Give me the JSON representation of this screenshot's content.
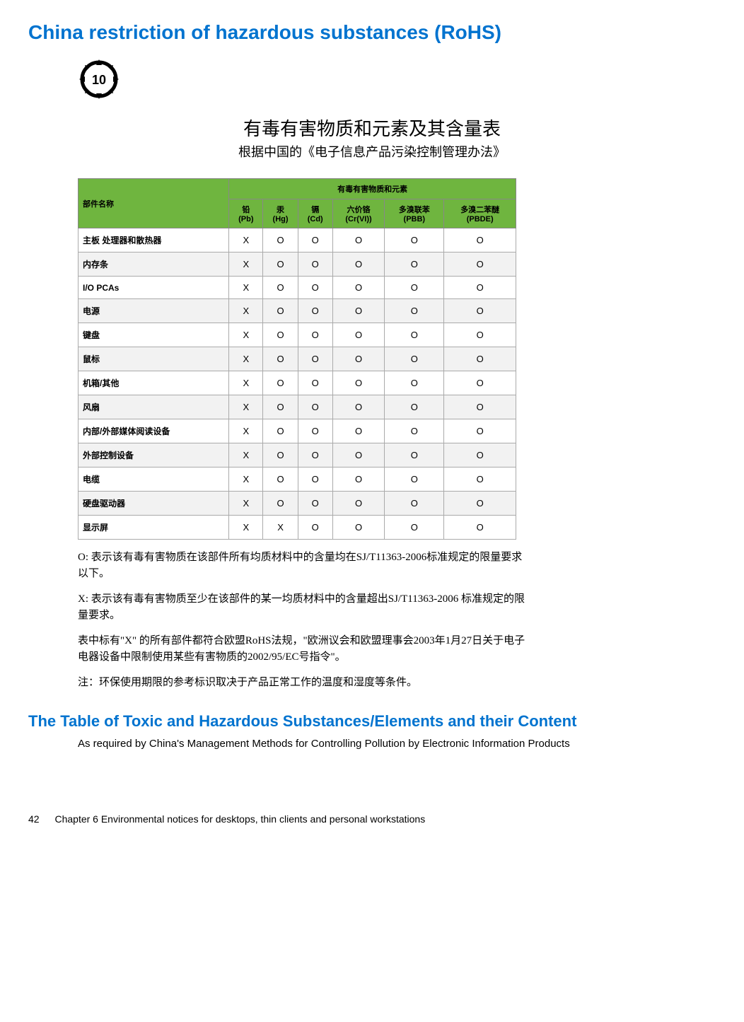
{
  "heading": "China restriction of hazardous substances (RoHS)",
  "epup_value": "10",
  "cn_title": "有毒有害物质和元素及其含量表",
  "cn_subtitle": "根据中国的《电子信息产品污染控制管理办法》",
  "table": {
    "header_group": "有毒有害物质和元素",
    "col_part": "部件名称",
    "columns": [
      {
        "l1": "铅",
        "l2": "(Pb)"
      },
      {
        "l1": "汞",
        "l2": "(Hg)"
      },
      {
        "l1": "镉",
        "l2": "(Cd)"
      },
      {
        "l1": "六价铬",
        "l2": "(Cr(VI))"
      },
      {
        "l1": "多溴联苯",
        "l2": "(PBB)"
      },
      {
        "l1": "多溴二苯醚",
        "l2": "(PBDE)"
      }
    ],
    "rows": [
      {
        "name": "主板 处理器和散热器",
        "vals": [
          "X",
          "O",
          "O",
          "O",
          "O",
          "O"
        ]
      },
      {
        "name": "内存条",
        "vals": [
          "X",
          "O",
          "O",
          "O",
          "O",
          "O"
        ]
      },
      {
        "name": "I/O PCAs",
        "vals": [
          "X",
          "O",
          "O",
          "O",
          "O",
          "O"
        ]
      },
      {
        "name": "电源",
        "vals": [
          "X",
          "O",
          "O",
          "O",
          "O",
          "O"
        ]
      },
      {
        "name": "键盘",
        "vals": [
          "X",
          "O",
          "O",
          "O",
          "O",
          "O"
        ]
      },
      {
        "name": "鼠标",
        "vals": [
          "X",
          "O",
          "O",
          "O",
          "O",
          "O"
        ]
      },
      {
        "name": "机箱/其他",
        "vals": [
          "X",
          "O",
          "O",
          "O",
          "O",
          "O"
        ]
      },
      {
        "name": "风扇",
        "vals": [
          "X",
          "O",
          "O",
          "O",
          "O",
          "O"
        ]
      },
      {
        "name": "内部/外部媒体阅读设备",
        "vals": [
          "X",
          "O",
          "O",
          "O",
          "O",
          "O"
        ]
      },
      {
        "name": "外部控制设备",
        "vals": [
          "X",
          "O",
          "O",
          "O",
          "O",
          "O"
        ]
      },
      {
        "name": "电缆",
        "vals": [
          "X",
          "O",
          "O",
          "O",
          "O",
          "O"
        ]
      },
      {
        "name": "硬盘驱动器",
        "vals": [
          "X",
          "O",
          "O",
          "O",
          "O",
          "O"
        ]
      },
      {
        "name": "显示屏",
        "vals": [
          "X",
          "X",
          "O",
          "O",
          "O",
          "O"
        ]
      }
    ]
  },
  "notes": {
    "p1": "O: 表示该有毒有害物质在该部件所有均质材料中的含量均在SJ/T11363-2006标准规定的限量要求以下。",
    "p2": "X: 表示该有毒有害物质至少在该部件的某一均质材料中的含量超出SJ/T11363-2006  标准规定的限量要求。",
    "p3": "表中标有\"X\"  的所有部件都符合欧盟RoHS法规，\"欧洲议会和欧盟理事会2003年1月27日关于电子电器设备中限制使用某些有害物质的2002/95/EC号指令\"。",
    "p4": "注：环保使用期限的参考标识取决于产品正常工作的温度和湿度等条件。"
  },
  "sub_heading": "The Table of Toxic and Hazardous Substances/Elements and their Content",
  "eng_note": "As required by China's Management Methods for Controlling Pollution by Electronic Information Products",
  "footer": {
    "page": "42",
    "chapter": "Chapter 6   Environmental notices for desktops, thin clients and personal workstations"
  },
  "style": {
    "heading_color": "#0073cf",
    "table_header_bg": "#6fb53f",
    "row_alt_bg": "#f2f2f2"
  }
}
